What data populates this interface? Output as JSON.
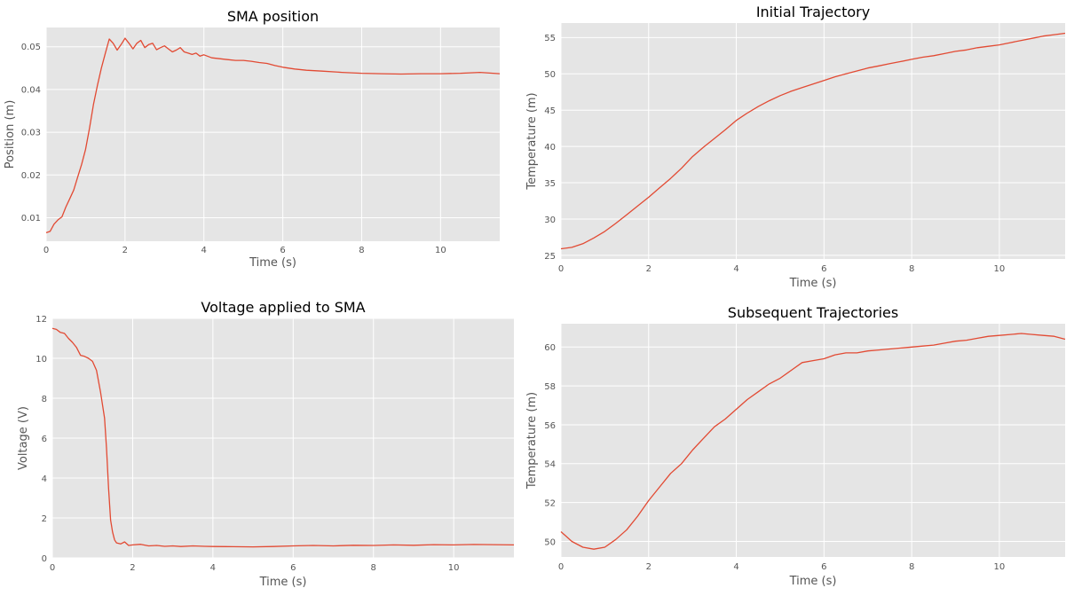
{
  "colors": {
    "series": "#e24a33",
    "panel": "#e5e5e5",
    "grid": "#ffffff"
  },
  "chart_data": [
    {
      "type": "line",
      "title": "SMA position",
      "xlabel": "Time (s)",
      "ylabel": "Position (m)",
      "xlim": [
        0,
        11.5
      ],
      "ylim": [
        0.0045,
        0.0545
      ],
      "xticks": [
        0,
        2,
        4,
        6,
        8,
        10
      ],
      "yticks": [
        0.01,
        0.02,
        0.03,
        0.04,
        0.05
      ],
      "xtick_labels": [
        "0",
        "2",
        "4",
        "6",
        "8",
        "10"
      ],
      "ytick_labels": [
        "0.01",
        "0.02",
        "0.03",
        "0.04",
        "0.05"
      ],
      "grid": true,
      "series": [
        {
          "x": [
            0,
            0.1,
            0.2,
            0.3,
            0.4,
            0.5,
            0.6,
            0.7,
            0.8,
            0.9,
            1.0,
            1.1,
            1.2,
            1.3,
            1.4,
            1.5,
            1.6,
            1.7,
            1.8,
            1.9,
            2.0,
            2.1,
            2.2,
            2.3,
            2.4,
            2.5,
            2.6,
            2.7,
            2.8,
            2.9,
            3.0,
            3.1,
            3.2,
            3.3,
            3.4,
            3.5,
            3.6,
            3.7,
            3.8,
            3.9,
            4.0,
            4.2,
            4.4,
            4.6,
            4.8,
            5.0,
            5.2,
            5.4,
            5.6,
            5.8,
            6.0,
            6.3,
            6.6,
            7.0,
            7.5,
            8.0,
            8.5,
            9.0,
            9.5,
            10.0,
            10.5,
            11.0,
            11.5
          ],
          "y": [
            0.0065,
            0.0068,
            0.0085,
            0.0095,
            0.0102,
            0.0125,
            0.0145,
            0.0165,
            0.0195,
            0.0225,
            0.026,
            0.031,
            0.0365,
            0.041,
            0.045,
            0.0485,
            0.0518,
            0.0508,
            0.0492,
            0.0505,
            0.052,
            0.0508,
            0.0495,
            0.0508,
            0.0515,
            0.0498,
            0.0505,
            0.0508,
            0.0493,
            0.0498,
            0.0502,
            0.0495,
            0.0488,
            0.0492,
            0.0498,
            0.0488,
            0.0485,
            0.0482,
            0.0485,
            0.0478,
            0.0481,
            0.0474,
            0.0472,
            0.047,
            0.0468,
            0.0468,
            0.0466,
            0.0463,
            0.0461,
            0.0456,
            0.0452,
            0.0448,
            0.0445,
            0.0443,
            0.044,
            0.0438,
            0.0437,
            0.0436,
            0.0437,
            0.0437,
            0.0438,
            0.044,
            0.0437
          ]
        }
      ]
    },
    {
      "type": "line",
      "title": "Initial Trajectory",
      "xlabel": "Time (s)",
      "ylabel": "Temperature (m)",
      "xlim": [
        0,
        11.5
      ],
      "ylim": [
        24.5,
        57
      ],
      "xticks": [
        0,
        2,
        4,
        6,
        8,
        10
      ],
      "yticks": [
        25,
        30,
        35,
        40,
        45,
        50,
        55
      ],
      "xtick_labels": [
        "0",
        "2",
        "4",
        "6",
        "8",
        "10"
      ],
      "ytick_labels": [
        "25",
        "30",
        "35",
        "40",
        "45",
        "50",
        "55"
      ],
      "grid": true,
      "series": [
        {
          "x": [
            0,
            0.25,
            0.5,
            0.75,
            1.0,
            1.25,
            1.5,
            1.75,
            2.0,
            2.25,
            2.5,
            2.75,
            3.0,
            3.25,
            3.5,
            3.75,
            4.0,
            4.25,
            4.5,
            4.75,
            5.0,
            5.25,
            5.5,
            5.75,
            6.0,
            6.25,
            6.5,
            6.75,
            7.0,
            7.25,
            7.5,
            7.75,
            8.0,
            8.25,
            8.5,
            8.75,
            9.0,
            9.25,
            9.5,
            9.75,
            10.0,
            10.25,
            10.5,
            10.75,
            11.0,
            11.25,
            11.5
          ],
          "y": [
            25.9,
            26.1,
            26.6,
            27.4,
            28.3,
            29.4,
            30.6,
            31.8,
            33.0,
            34.3,
            35.6,
            37.0,
            38.6,
            39.9,
            41.1,
            42.3,
            43.6,
            44.6,
            45.5,
            46.3,
            47.0,
            47.6,
            48.1,
            48.6,
            49.1,
            49.6,
            50.0,
            50.4,
            50.8,
            51.1,
            51.4,
            51.7,
            52.0,
            52.3,
            52.5,
            52.8,
            53.1,
            53.3,
            53.6,
            53.8,
            54.0,
            54.3,
            54.6,
            54.9,
            55.2,
            55.4,
            55.6
          ]
        }
      ]
    },
    {
      "type": "line",
      "title": "Voltage applied to SMA",
      "xlabel": "Time (s)",
      "ylabel": "Voltage (V)",
      "xlim": [
        0,
        11.5
      ],
      "ylim": [
        0,
        12
      ],
      "xticks": [
        0,
        2,
        4,
        6,
        8,
        10
      ],
      "yticks": [
        0,
        2,
        4,
        6,
        8,
        10,
        12
      ],
      "xtick_labels": [
        "0",
        "2",
        "4",
        "6",
        "8",
        "10"
      ],
      "ytick_labels": [
        "0",
        "2",
        "4",
        "6",
        "8",
        "10",
        "12"
      ],
      "grid": true,
      "series": [
        {
          "x": [
            0,
            0.1,
            0.2,
            0.3,
            0.4,
            0.5,
            0.6,
            0.7,
            0.8,
            0.9,
            1.0,
            1.1,
            1.2,
            1.3,
            1.35,
            1.4,
            1.45,
            1.5,
            1.55,
            1.6,
            1.7,
            1.8,
            1.9,
            2.0,
            2.2,
            2.4,
            2.6,
            2.8,
            3.0,
            3.2,
            3.5,
            3.8,
            4.0,
            4.5,
            5.0,
            5.5,
            6.0,
            6.5,
            7.0,
            7.5,
            8.0,
            8.5,
            9.0,
            9.5,
            10.0,
            10.5,
            11.0,
            11.5
          ],
          "y": [
            11.5,
            11.45,
            11.3,
            11.25,
            11.0,
            10.8,
            10.55,
            10.15,
            10.1,
            10.0,
            9.85,
            9.4,
            8.3,
            7.0,
            5.5,
            3.5,
            1.9,
            1.3,
            0.9,
            0.75,
            0.7,
            0.8,
            0.62,
            0.65,
            0.68,
            0.6,
            0.62,
            0.58,
            0.6,
            0.57,
            0.6,
            0.58,
            0.57,
            0.56,
            0.55,
            0.57,
            0.6,
            0.62,
            0.6,
            0.63,
            0.62,
            0.65,
            0.63,
            0.66,
            0.65,
            0.67,
            0.66,
            0.65
          ]
        }
      ]
    },
    {
      "type": "line",
      "title": "Subsequent Trajectories",
      "xlabel": "Time (s)",
      "ylabel": "Temperature (m)",
      "xlim": [
        0,
        11.5
      ],
      "ylim": [
        49.2,
        61.2
      ],
      "xticks": [
        0,
        2,
        4,
        6,
        8,
        10
      ],
      "yticks": [
        50,
        52,
        54,
        56,
        58,
        60
      ],
      "xtick_labels": [
        "0",
        "2",
        "4",
        "6",
        "8",
        "10"
      ],
      "ytick_labels": [
        "50",
        "52",
        "54",
        "56",
        "58",
        "60"
      ],
      "grid": true,
      "series": [
        {
          "x": [
            0,
            0.25,
            0.5,
            0.75,
            1.0,
            1.25,
            1.5,
            1.75,
            2.0,
            2.25,
            2.5,
            2.75,
            3.0,
            3.25,
            3.5,
            3.75,
            4.0,
            4.25,
            4.5,
            4.75,
            5.0,
            5.25,
            5.5,
            5.75,
            6.0,
            6.25,
            6.5,
            6.75,
            7.0,
            7.25,
            7.5,
            7.75,
            8.0,
            8.25,
            8.5,
            8.75,
            9.0,
            9.25,
            9.5,
            9.75,
            10.0,
            10.25,
            10.5,
            10.75,
            11.0,
            11.25,
            11.5
          ],
          "y": [
            50.5,
            50.0,
            49.7,
            49.6,
            49.7,
            50.1,
            50.6,
            51.3,
            52.1,
            52.8,
            53.5,
            54.0,
            54.7,
            55.3,
            55.9,
            56.3,
            56.8,
            57.3,
            57.7,
            58.1,
            58.4,
            58.8,
            59.2,
            59.3,
            59.4,
            59.6,
            59.7,
            59.7,
            59.8,
            59.85,
            59.9,
            59.95,
            60.0,
            60.05,
            60.1,
            60.2,
            60.3,
            60.35,
            60.45,
            60.55,
            60.6,
            60.65,
            60.7,
            60.65,
            60.6,
            60.55,
            60.4
          ]
        }
      ]
    }
  ]
}
